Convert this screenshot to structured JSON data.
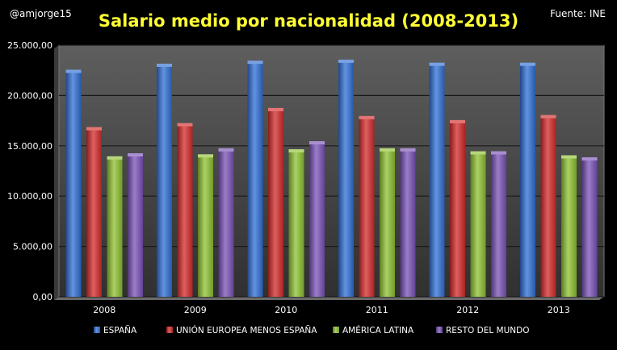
{
  "handle": "@amjorge15",
  "source": "Fuente: INE",
  "chart_data": {
    "type": "bar",
    "title": "Salario medio por nacionalidad (2008-2013)",
    "xlabel": "",
    "ylabel": "",
    "categories": [
      "2008",
      "2009",
      "2010",
      "2011",
      "2012",
      "2013"
    ],
    "ylim": [
      0,
      25000
    ],
    "yticks": [
      0,
      5000,
      10000,
      15000,
      20000,
      25000
    ],
    "ytick_labels": [
      "0,00",
      "5.000,00",
      "10.000,00",
      "15.000,00",
      "20.000,00",
      "25.000,00"
    ],
    "grid": true,
    "legend_position": "bottom",
    "series": [
      {
        "name": "ESPAÑA",
        "color": "#2f6fd6",
        "values": [
          22400,
          23000,
          23300,
          23400,
          23100,
          23100
        ]
      },
      {
        "name": "UNIÓN EUROPEA MENOS ESPAÑA",
        "color": "#d42a2a",
        "values": [
          16700,
          17100,
          18600,
          17800,
          17400,
          17900
        ]
      },
      {
        "name": "AMÉRICA LATINA",
        "color": "#8fc232",
        "values": [
          13800,
          14000,
          14500,
          14600,
          14300,
          13900
        ]
      },
      {
        "name": "RESTO DEL MUNDO",
        "color": "#7a52b8",
        "values": [
          14100,
          14600,
          15300,
          14600,
          14300,
          13700
        ]
      }
    ]
  }
}
